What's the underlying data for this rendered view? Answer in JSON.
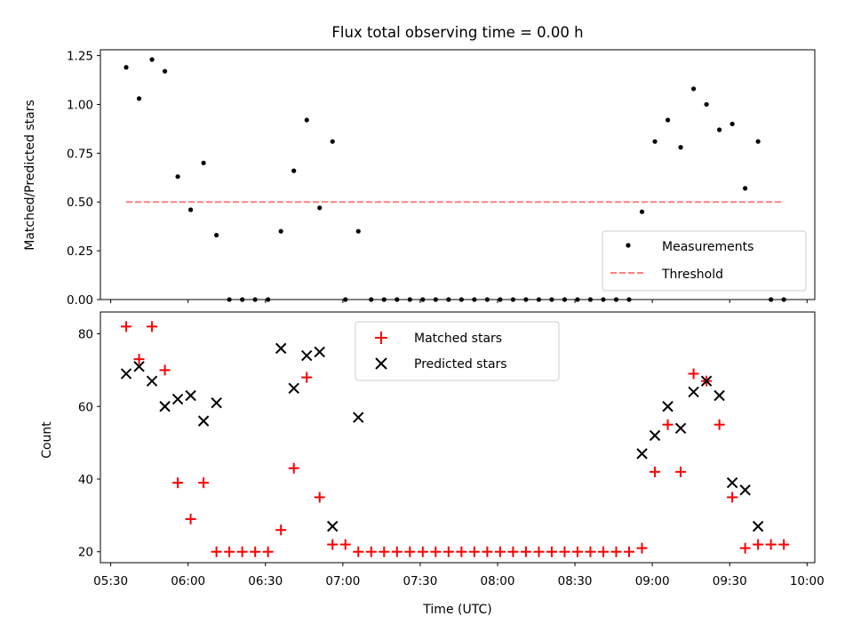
{
  "chart_data": [
    {
      "type": "scatter",
      "title": "Flux total observing time = 0.00 h",
      "xlabel": "",
      "ylabel": "Matched/Predicted stars",
      "ylim": [
        0,
        1.28
      ],
      "yticks": [
        "0.00",
        "0.25",
        "0.50",
        "0.75",
        "1.00",
        "1.25"
      ],
      "legend_position": "lower-right",
      "series": [
        {
          "name": "Measurements",
          "style": "dot",
          "color": "#000000",
          "x": [
            "05:36",
            "05:41",
            "05:46",
            "05:51",
            "05:56",
            "06:01",
            "06:06",
            "06:11",
            "06:16",
            "06:21",
            "06:26",
            "06:31",
            "06:36",
            "06:41",
            "06:46",
            "06:51",
            "06:56",
            "07:01",
            "07:06",
            "07:11",
            "07:16",
            "07:21",
            "07:26",
            "07:31",
            "07:36",
            "07:41",
            "07:46",
            "07:51",
            "07:56",
            "08:01",
            "08:06",
            "08:11",
            "08:16",
            "08:21",
            "08:26",
            "08:31",
            "08:36",
            "08:41",
            "08:46",
            "08:51",
            "08:56",
            "09:01",
            "09:06",
            "09:11",
            "09:16",
            "09:21",
            "09:26",
            "09:31",
            "09:36",
            "09:41",
            "09:46",
            "09:51"
          ],
          "y": [
            1.19,
            1.03,
            1.23,
            1.17,
            0.63,
            0.46,
            0.7,
            0.33,
            0.0,
            0.0,
            0.0,
            0.0,
            0.35,
            0.66,
            0.92,
            0.47,
            0.81,
            0.0,
            0.35,
            0.0,
            0.0,
            0.0,
            0.0,
            0.0,
            0.0,
            0.0,
            0.0,
            0.0,
            0.0,
            0.0,
            0.0,
            0.0,
            0.0,
            0.0,
            0.0,
            0.0,
            0.0,
            0.0,
            0.0,
            0.0,
            0.45,
            0.81,
            0.92,
            0.78,
            1.08,
            1.0,
            0.87,
            0.9,
            0.57,
            0.81,
            0.0,
            0.0
          ]
        },
        {
          "name": "Threshold",
          "style": "dashed-line",
          "color": "#ff7f7f",
          "x": [
            "05:36",
            "09:51"
          ],
          "y": [
            0.5,
            0.5
          ]
        }
      ]
    },
    {
      "type": "scatter",
      "title": "",
      "xlabel": "Time (UTC)",
      "ylabel": "Count",
      "ylim": [
        17,
        86
      ],
      "yticks": [
        "20",
        "40",
        "60",
        "80"
      ],
      "xticks": [
        "05:30",
        "06:00",
        "06:30",
        "07:00",
        "07:30",
        "08:00",
        "08:30",
        "09:00",
        "09:30",
        "10:00"
      ],
      "legend_position": "top-center",
      "series": [
        {
          "name": "Matched stars",
          "style": "plus",
          "color": "#ff0000",
          "x": [
            "05:36",
            "05:41",
            "05:46",
            "05:51",
            "05:56",
            "06:01",
            "06:06",
            "06:11",
            "06:16",
            "06:21",
            "06:26",
            "06:31",
            "06:36",
            "06:41",
            "06:46",
            "06:51",
            "06:56",
            "07:01",
            "07:06",
            "07:11",
            "07:16",
            "07:21",
            "07:26",
            "07:31",
            "07:36",
            "07:41",
            "07:46",
            "07:51",
            "07:56",
            "08:01",
            "08:06",
            "08:11",
            "08:16",
            "08:21",
            "08:26",
            "08:31",
            "08:36",
            "08:41",
            "08:46",
            "08:51",
            "08:56",
            "09:01",
            "09:06",
            "09:11",
            "09:16",
            "09:21",
            "09:26",
            "09:31",
            "09:36",
            "09:41",
            "09:46",
            "09:51"
          ],
          "y": [
            82,
            73,
            82,
            70,
            39,
            29,
            39,
            20,
            20,
            20,
            20,
            20,
            26,
            43,
            68,
            35,
            22,
            22,
            20,
            20,
            20,
            20,
            20,
            20,
            20,
            20,
            20,
            20,
            20,
            20,
            20,
            20,
            20,
            20,
            20,
            20,
            20,
            20,
            20,
            20,
            21,
            42,
            55,
            42,
            69,
            67,
            55,
            35,
            21,
            22,
            22,
            22
          ]
        },
        {
          "name": "Predicted stars",
          "style": "x",
          "color": "#000000",
          "x": [
            "05:36",
            "05:41",
            "05:46",
            "05:51",
            "05:56",
            "06:01",
            "06:06",
            "06:11",
            "06:36",
            "06:41",
            "06:46",
            "06:51",
            "06:56",
            "07:06",
            "08:56",
            "09:01",
            "09:06",
            "09:11",
            "09:16",
            "09:21",
            "09:26",
            "09:31",
            "09:36",
            "09:41"
          ],
          "y": [
            69,
            71,
            67,
            60,
            62,
            63,
            56,
            61,
            76,
            65,
            74,
            75,
            27,
            57,
            47,
            52,
            60,
            54,
            64,
            67,
            63,
            39,
            37,
            27
          ]
        }
      ]
    }
  ]
}
